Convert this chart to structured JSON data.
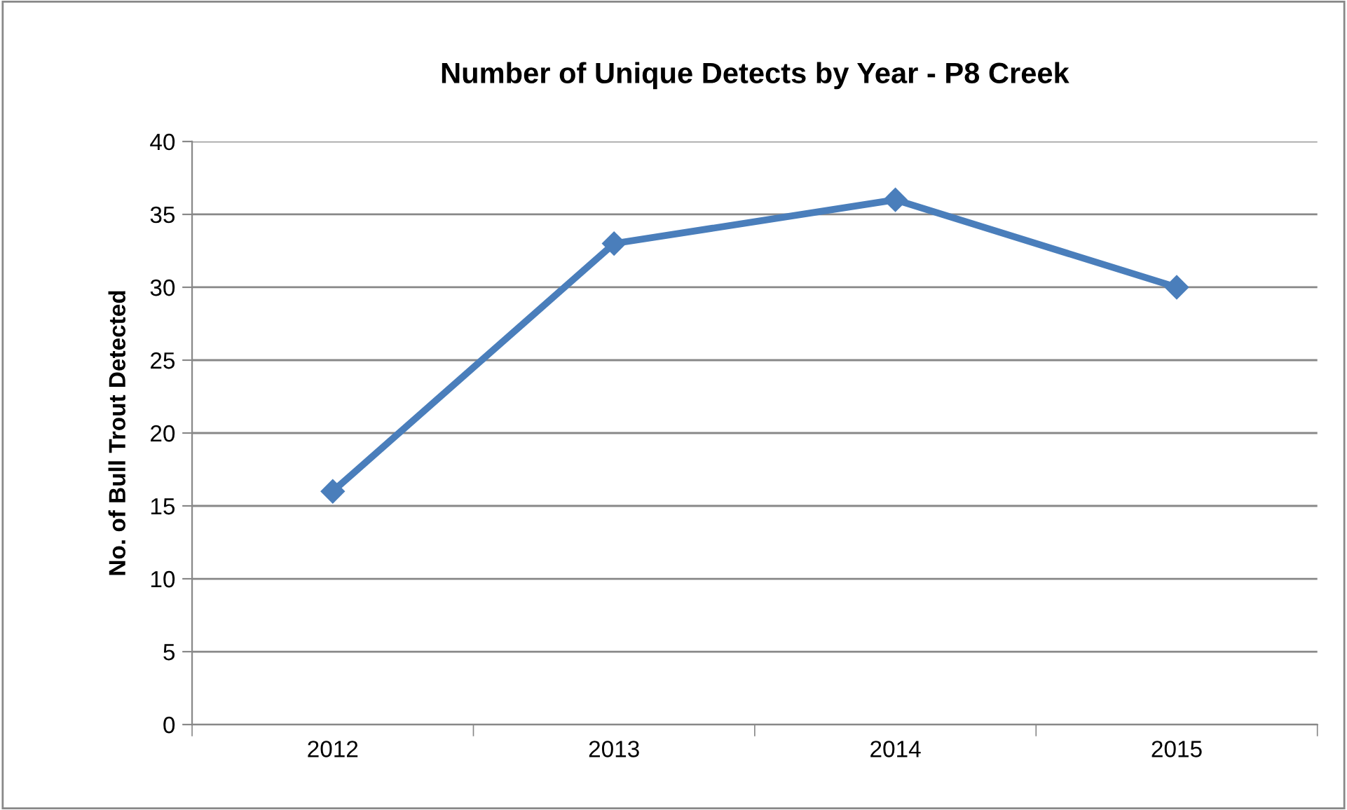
{
  "chart_data": {
    "type": "line",
    "title": "Number of Unique Detects by Year - P8 Creek",
    "ylabel": "No. of Bull Trout Detected",
    "categories": [
      "2012",
      "2013",
      "2014",
      "2015"
    ],
    "series": [
      {
        "color": "#4a7ebb",
        "values": [
          16,
          33,
          36,
          30
        ]
      }
    ],
    "ylim": [
      0,
      40
    ],
    "yticks": [
      0,
      5,
      10,
      15,
      20,
      25,
      30,
      35,
      40
    ],
    "grid": "y",
    "marker": "diamond",
    "line_style": "solid",
    "legend": false
  }
}
